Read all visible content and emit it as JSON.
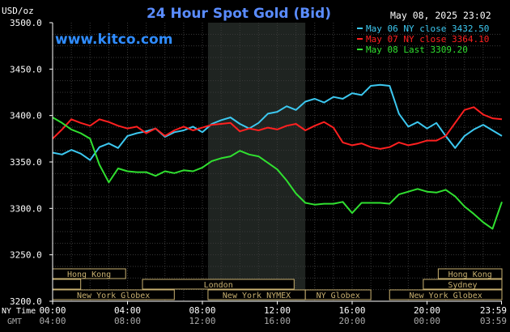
{
  "chart_data": {
    "type": "line",
    "title": "24 Hour Spot Gold (Bid)",
    "timestamp": "May 08, 2025 23:02",
    "watermark": "www.kitco.com",
    "y_unit_label": "USD/oz",
    "ylim": [
      3200,
      3500
    ],
    "y_ticks": [
      "3500.0",
      "3450.0",
      "3400.0",
      "3350.0",
      "3300.0",
      "3250.0",
      "3200.0"
    ],
    "y_tick_values": [
      3500,
      3450,
      3400,
      3350,
      3300,
      3250,
      3200
    ],
    "xlim": [
      0,
      24
    ],
    "x_row_labels": [
      "NY Time",
      "GMT"
    ],
    "x_ticks_ny": [
      "00:00",
      "04:00",
      "08:00",
      "12:00",
      "16:00",
      "20:00",
      "23:59"
    ],
    "x_ticks_gmt": [
      "04:00",
      "08:00",
      "12:00",
      "16:00",
      "20:00",
      "00:00",
      "03:59"
    ],
    "x_tick_hours": [
      0,
      4,
      8,
      12,
      16,
      20,
      23.98
    ],
    "highlight_hours": [
      8.3,
      13.5
    ],
    "grid": true,
    "legend_position": "top-right",
    "series": [
      {
        "name": "May 06 NY close 3432.50",
        "color": "#3cc8f0",
        "x": [
          0,
          0.5,
          1,
          1.5,
          2,
          2.5,
          3,
          3.5,
          4,
          4.5,
          5,
          5.5,
          6,
          6.5,
          7,
          7.5,
          8,
          8.5,
          9,
          9.5,
          10,
          10.5,
          11,
          11.5,
          12,
          12.5,
          13,
          13.5,
          14,
          14.5,
          15,
          15.5,
          16,
          16.5,
          17,
          17.5,
          18,
          18.5,
          19,
          19.5,
          20,
          20.5,
          21,
          21.5,
          22,
          22.5,
          23,
          23.5,
          24
        ],
        "values": [
          3360,
          3358,
          3363,
          3359,
          3352,
          3366,
          3370,
          3365,
          3378,
          3381,
          3383,
          3386,
          3377,
          3382,
          3384,
          3388,
          3382,
          3391,
          3395,
          3398,
          3391,
          3386,
          3392,
          3402,
          3404,
          3410,
          3406,
          3415,
          3418,
          3414,
          3420,
          3418,
          3424,
          3422,
          3432,
          3433,
          3432,
          3402,
          3388,
          3393,
          3386,
          3392,
          3378,
          3365,
          3378,
          3385,
          3390,
          3384,
          3378
        ]
      },
      {
        "name": "May 07 NY close 3364.10",
        "color": "#ff2020",
        "x": [
          0,
          0.5,
          1,
          1.5,
          2,
          2.5,
          3,
          3.5,
          4,
          4.5,
          5,
          5.5,
          6,
          6.5,
          7,
          7.5,
          8,
          8.5,
          9,
          9.5,
          10,
          10.5,
          11,
          11.5,
          12,
          12.5,
          13,
          13.5,
          14,
          14.5,
          15,
          15.5,
          16,
          16.5,
          17,
          17.5,
          18,
          18.5,
          19,
          19.5,
          20,
          20.5,
          21,
          21.5,
          22,
          22.5,
          23,
          23.5,
          24
        ],
        "values": [
          3375,
          3385,
          3396,
          3392,
          3389,
          3396,
          3393,
          3389,
          3386,
          3388,
          3381,
          3386,
          3378,
          3384,
          3388,
          3384,
          3387,
          3390,
          3391,
          3392,
          3383,
          3386,
          3384,
          3387,
          3385,
          3389,
          3391,
          3384,
          3389,
          3393,
          3387,
          3371,
          3368,
          3370,
          3366,
          3364,
          3366,
          3371,
          3368,
          3370,
          3373,
          3373,
          3378,
          3392,
          3406,
          3409,
          3401,
          3397,
          3396
        ]
      },
      {
        "name": "May 08 Last 3309.20",
        "color": "#30e030",
        "x": [
          0,
          0.5,
          1,
          1.5,
          2,
          2.5,
          3,
          3.5,
          4,
          4.5,
          5,
          5.5,
          6,
          6.5,
          7,
          7.5,
          8,
          8.5,
          9,
          9.5,
          10,
          10.5,
          11,
          11.5,
          12,
          12.5,
          13,
          13.5,
          14,
          14.5,
          15,
          15.5,
          16,
          16.5,
          17,
          17.5,
          18,
          18.5,
          19,
          19.5,
          20,
          20.5,
          21,
          21.5,
          22,
          22.5,
          23,
          23.5,
          24
        ],
        "values": [
          3398,
          3392,
          3385,
          3381,
          3375,
          3347,
          3328,
          3343,
          3340,
          3339,
          3339,
          3335,
          3340,
          3338,
          3341,
          3340,
          3344,
          3351,
          3354,
          3356,
          3362,
          3358,
          3356,
          3349,
          3342,
          3330,
          3316,
          3306,
          3304,
          3305,
          3305,
          3307,
          3295,
          3306,
          3306,
          3306,
          3305,
          3315,
          3318,
          3321,
          3318,
          3317,
          3320,
          3313,
          3302,
          3294,
          3285,
          3278,
          3307
        ]
      }
    ],
    "sessions": {
      "rows": [
        [
          {
            "label": "Hong Kong",
            "start": 0,
            "end": 3.9
          },
          {
            "label": "Hong Kong",
            "start": 20.6,
            "end": 24
          }
        ],
        [
          {
            "label": "",
            "start": 0,
            "end": 1.5
          },
          {
            "label": "London",
            "start": 4.8,
            "end": 12.9
          },
          {
            "label": "Sydney",
            "start": 19.8,
            "end": 24
          }
        ],
        [
          {
            "label": "New York Globex",
            "start": 0,
            "end": 6.5
          },
          {
            "label": "New York NYMEX",
            "start": 8.3,
            "end": 13.5
          },
          {
            "label": "NY Globex",
            "start": 13.5,
            "end": 17.0
          },
          {
            "label": "New York Globex",
            "start": 18.0,
            "end": 24
          }
        ]
      ]
    }
  }
}
